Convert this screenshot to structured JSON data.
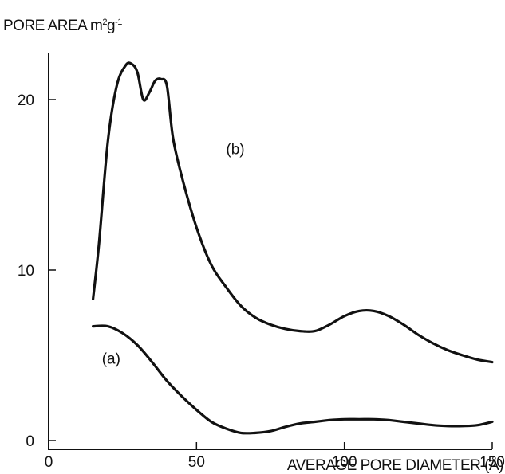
{
  "chart_data": {
    "type": "line",
    "ylabel_main": "PORE AREA m",
    "ylabel_sup1": "2",
    "ylabel_mid": "g",
    "ylabel_sup2": "-1",
    "xlabel": "AVERAGE PORE DIAMETER (Å)",
    "xlim": [
      0,
      150
    ],
    "ylim": [
      0,
      24
    ],
    "x_ticks": [
      0,
      50,
      100,
      150
    ],
    "y_ticks": [
      0,
      10,
      20
    ],
    "grid": false,
    "series": [
      {
        "name": "(b)",
        "x": [
          15,
          17,
          20,
          23,
          26,
          28,
          30,
          32,
          34,
          36,
          38,
          40,
          42,
          45,
          50,
          55,
          60,
          65,
          70,
          75,
          80,
          85,
          90,
          95,
          100,
          105,
          110,
          115,
          120,
          125,
          130,
          135,
          140,
          145,
          150
        ],
        "y": [
          8.3,
          11.5,
          17.5,
          20.8,
          22.0,
          22.1,
          21.6,
          20.0,
          20.4,
          21.1,
          21.2,
          20.8,
          17.8,
          15.5,
          12.5,
          10.3,
          9.0,
          7.9,
          7.2,
          6.8,
          6.55,
          6.42,
          6.42,
          6.8,
          7.3,
          7.6,
          7.6,
          7.3,
          6.8,
          6.2,
          5.7,
          5.3,
          5.0,
          4.75,
          4.6
        ]
      },
      {
        "name": "(a)",
        "x": [
          15,
          20,
          25,
          30,
          35,
          40,
          45,
          50,
          55,
          60,
          65,
          70,
          75,
          80,
          85,
          90,
          95,
          100,
          105,
          110,
          115,
          120,
          125,
          130,
          135,
          140,
          145,
          150
        ],
        "y": [
          6.7,
          6.7,
          6.3,
          5.6,
          4.6,
          3.5,
          2.6,
          1.8,
          1.1,
          0.7,
          0.45,
          0.45,
          0.55,
          0.8,
          1.0,
          1.1,
          1.2,
          1.25,
          1.25,
          1.25,
          1.2,
          1.1,
          1.0,
          0.9,
          0.85,
          0.85,
          0.9,
          1.1
        ]
      }
    ],
    "series_labels": [
      {
        "text": "(b)",
        "x": 60,
        "y": 16.8
      },
      {
        "text": "(a)",
        "x": 18,
        "y": 4.5
      }
    ]
  }
}
